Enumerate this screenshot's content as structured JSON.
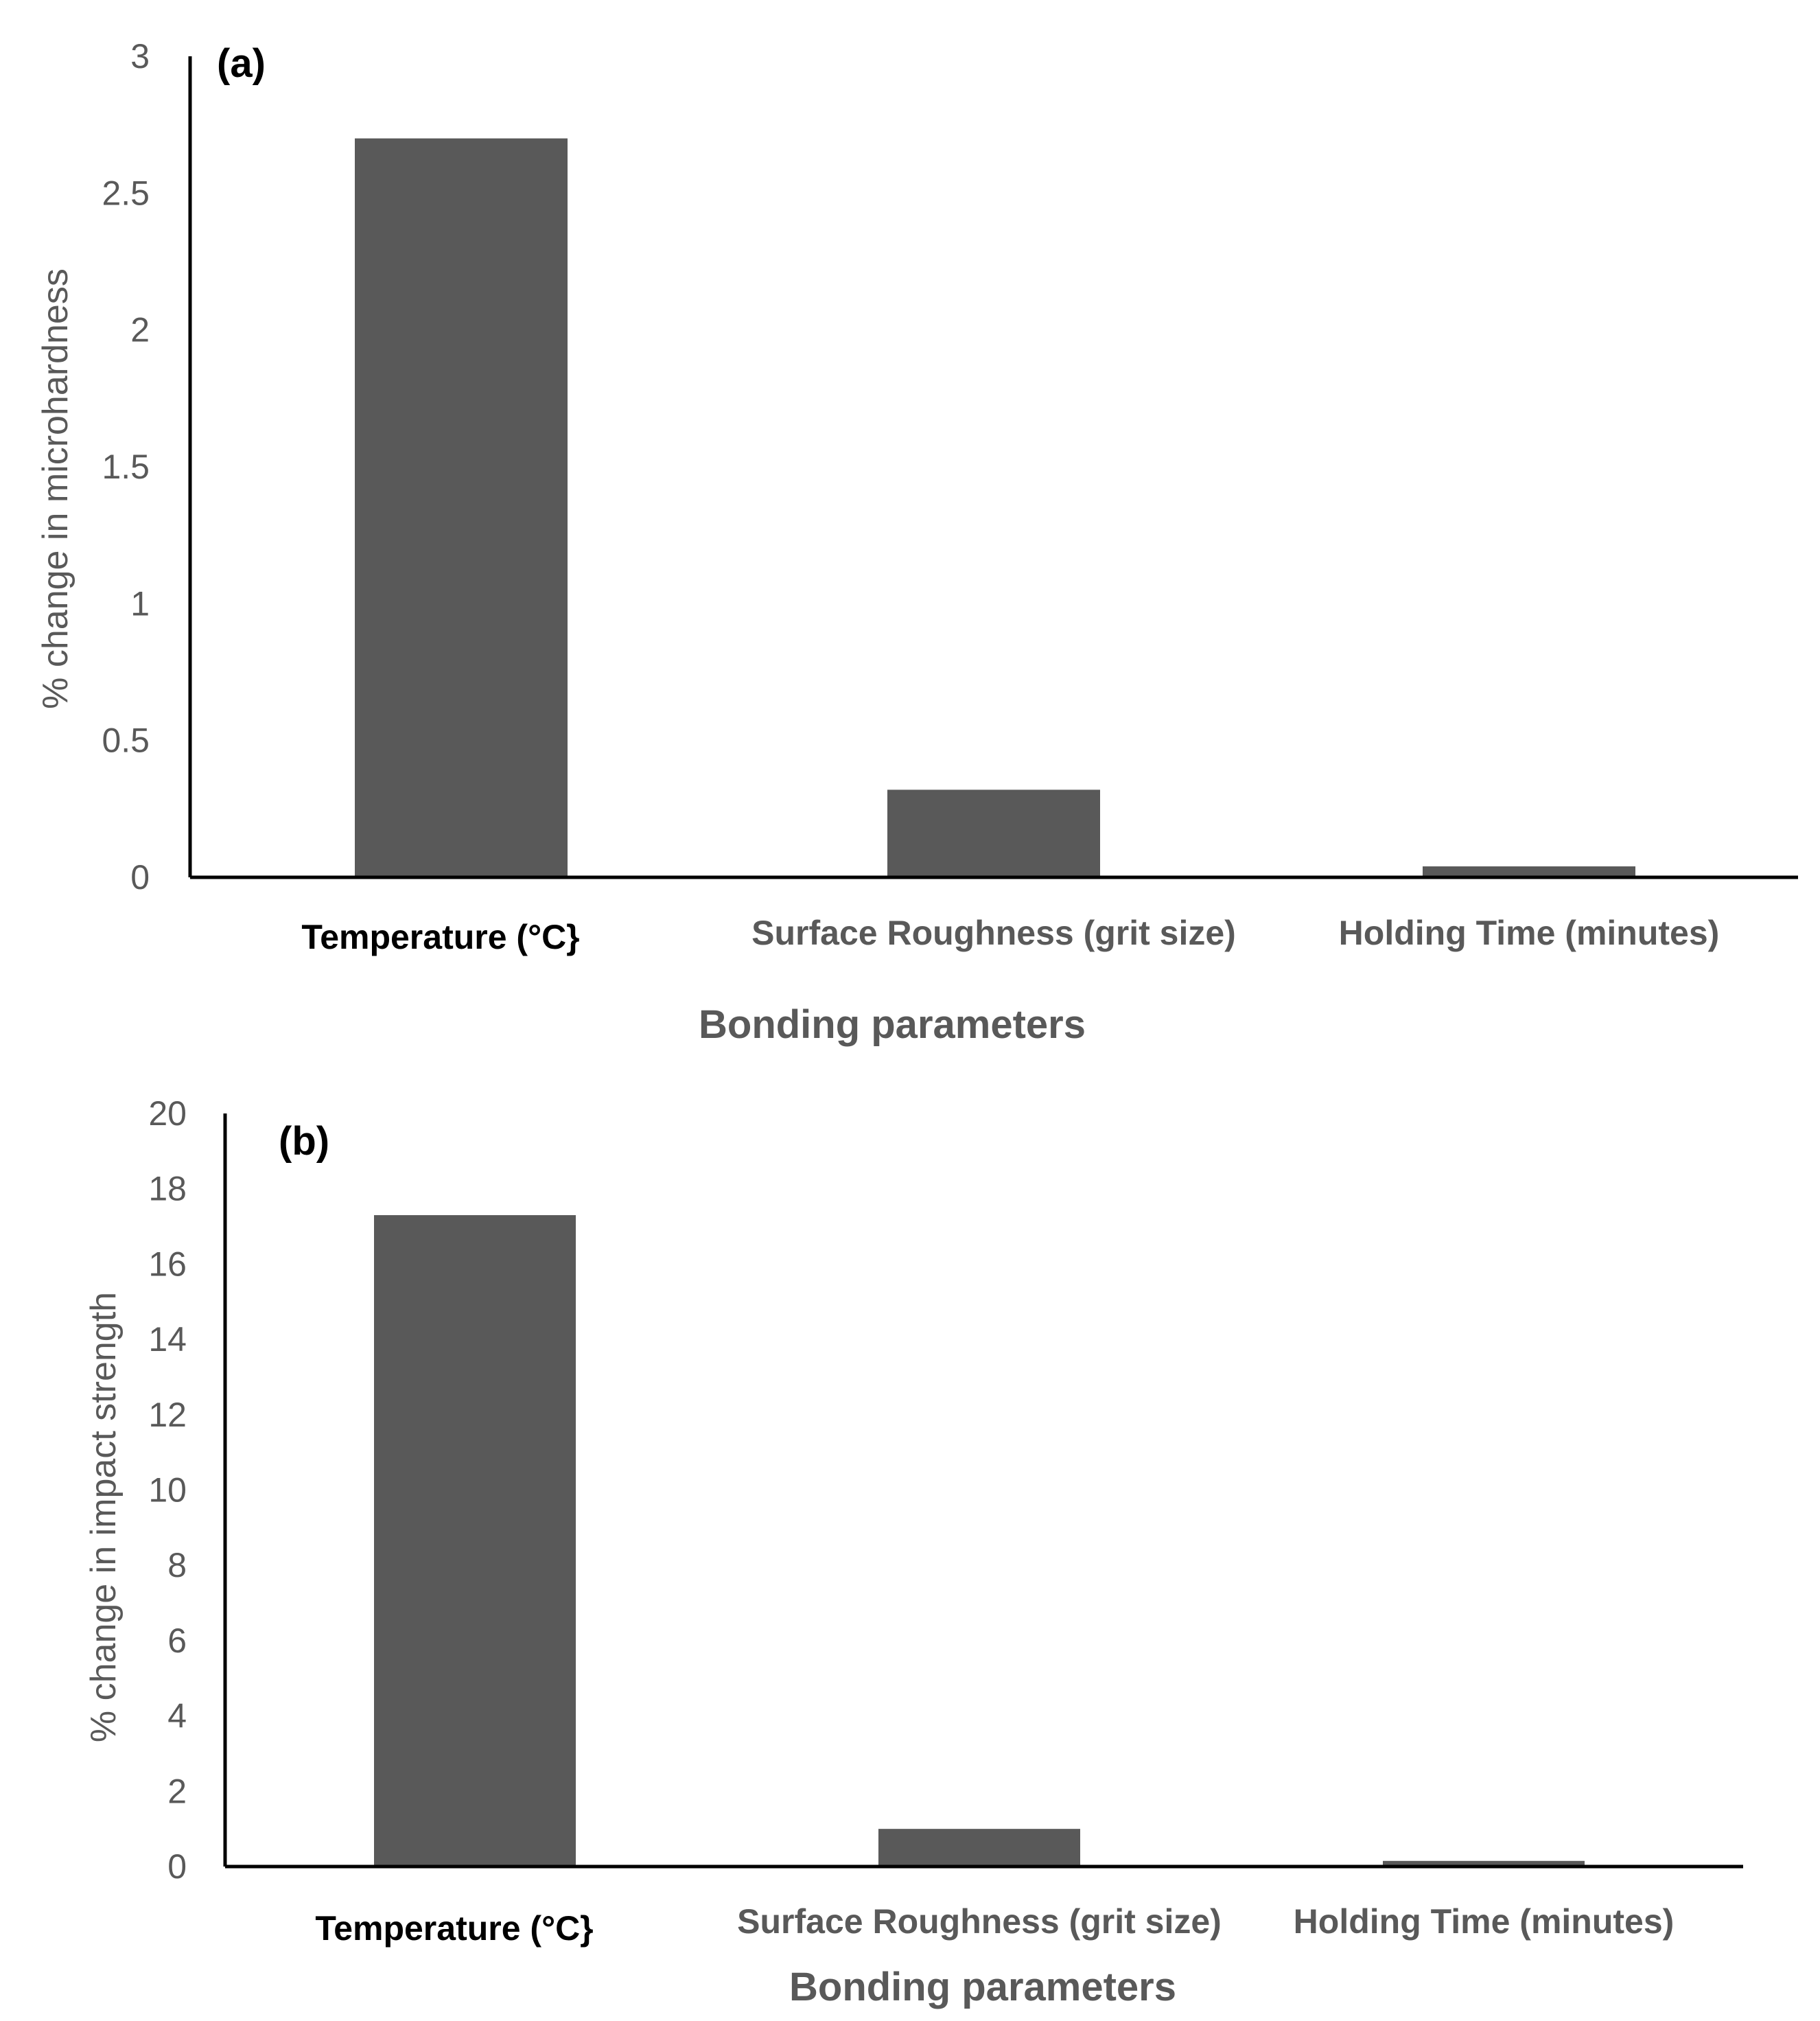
{
  "chart_data": [
    {
      "type": "bar",
      "panel_label": "(a)",
      "categories": [
        "Temperature (°C}",
        "Surface Roughness (grit size)",
        "Holding Time (minutes)"
      ],
      "values": [
        2.7,
        0.32,
        0.04
      ],
      "xlabel": "Bonding parameters",
      "ylabel": "% change in microhardness",
      "ylim": [
        0,
        3
      ],
      "yticks": [
        0,
        0.5,
        1,
        1.5,
        2,
        2.5,
        3
      ],
      "ytick_labels": [
        "0",
        "0.5",
        "1",
        "1.5",
        "2",
        "2.5",
        "3"
      ],
      "grid": false,
      "bar_color": "#595959"
    },
    {
      "type": "bar",
      "panel_label": "(b)",
      "categories": [
        "Temperature (°C}",
        "Surface Roughness (grit size)",
        "Holding Time (minutes)"
      ],
      "values": [
        17.3,
        1.0,
        0.15
      ],
      "xlabel": "Bonding parameters",
      "ylabel": "% change in impact strength",
      "ylim": [
        0,
        20
      ],
      "yticks": [
        0,
        2,
        4,
        6,
        8,
        10,
        12,
        14,
        16,
        18,
        20
      ],
      "ytick_labels": [
        "0",
        "2",
        "4",
        "6",
        "8",
        "10",
        "12",
        "14",
        "16",
        "18",
        "20"
      ],
      "grid": false,
      "bar_color": "#595959"
    }
  ]
}
